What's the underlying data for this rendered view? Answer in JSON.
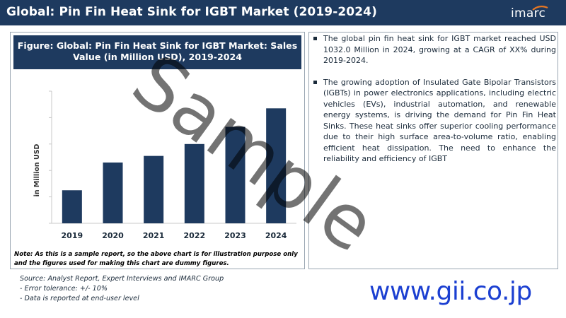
{
  "header": {
    "title": "Global: Pin Fin Heat Sink for IGBT Market (2019-2024)",
    "logo_text": "imarc"
  },
  "figure": {
    "title_line1": "Figure: Global: Pin Fin Heat Sink for IGBT Market: Sales",
    "title_line2": "Value (in Million USD), 2019-2024",
    "note_line1": "Note: As this is a sample report, so the above chart is for illustration purpose only",
    "note_line2": "and the figures used for making this chart are dummy figures."
  },
  "chart_data": {
    "type": "bar",
    "categories": [
      "2019",
      "2020",
      "2021",
      "2022",
      "2023",
      "2024"
    ],
    "values": [
      25,
      46,
      51,
      60,
      73,
      87
    ],
    "ylabel": "in Million USD",
    "ylim": [
      0,
      100
    ],
    "grid": false,
    "bar_color": "#1e3a5f"
  },
  "bullets": [
    "The global pin fin heat sink for IGBT market reached USD 1032.0 Million in 2024, growing at a CAGR of XX% during 2019-2024.",
    "The growing adoption of Insulated Gate Bipolar Transistors (IGBTs) in power electronics applications, including electric vehicles (EVs), industrial automation, and renewable energy systems, is driving the demand for Pin Fin Heat Sinks. These heat sinks offer superior cooling performance due to their high surface area-to-volume ratio, enabling efficient heat dissipation. The need to enhance the reliability and efficiency of IGBT"
  ],
  "footer": {
    "source": "Source: Analyst Report, Expert Interviews and IMARC Group",
    "error": "- Error tolerance: +/- 10%",
    "reported": "- Data is reported at end-user level",
    "url": "www.gii.co.jp"
  },
  "watermark": "Sample"
}
